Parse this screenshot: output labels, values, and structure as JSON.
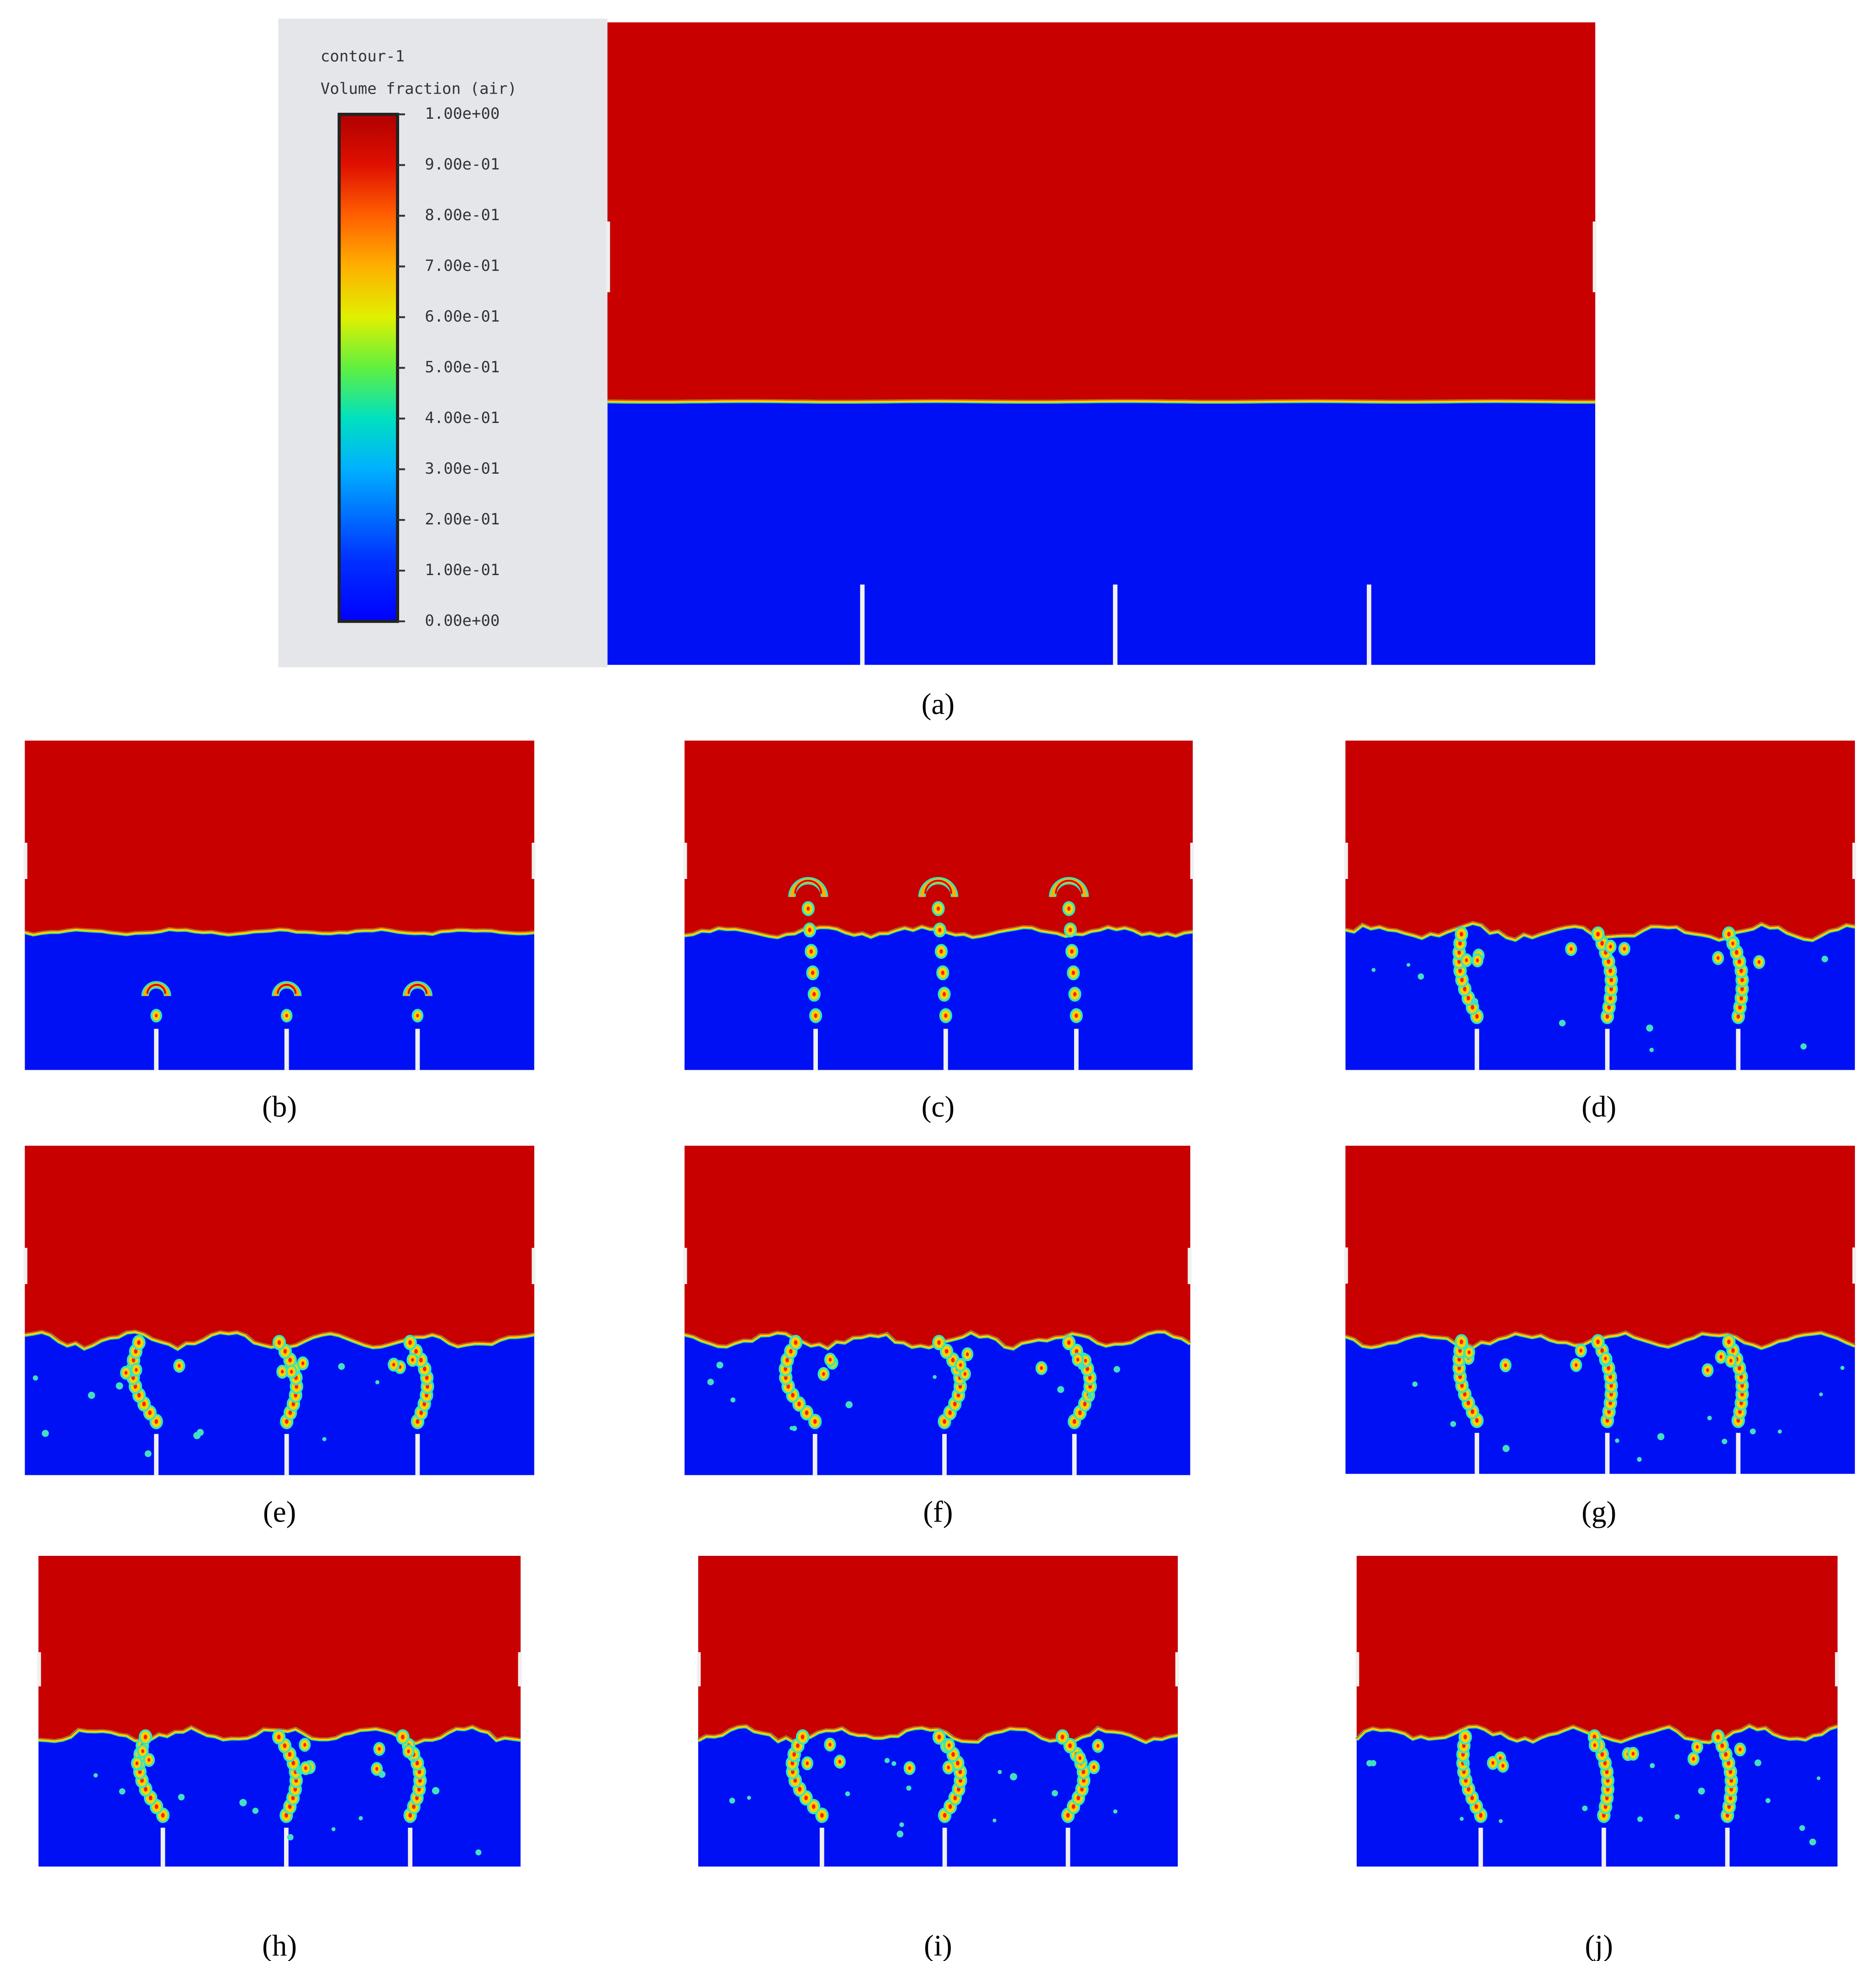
{
  "legend": {
    "title": "contour-1",
    "variable": "Volume fraction (air)",
    "ticks": [
      {
        "value": 1.0,
        "label": "1.00e+00"
      },
      {
        "value": 0.9,
        "label": "9.00e-01"
      },
      {
        "value": 0.8,
        "label": "8.00e-01"
      },
      {
        "value": 0.7,
        "label": "7.00e-01"
      },
      {
        "value": 0.6,
        "label": "6.00e-01"
      },
      {
        "value": 0.5,
        "label": "5.00e-01"
      },
      {
        "value": 0.4,
        "label": "4.00e-01"
      },
      {
        "value": 0.3,
        "label": "3.00e-01"
      },
      {
        "value": 0.2,
        "label": "2.00e-01"
      },
      {
        "value": 0.1,
        "label": "1.00e-01"
      },
      {
        "value": 0.0,
        "label": "0.00e+00"
      }
    ]
  },
  "panel_labels": [
    "(a)",
    "(b)",
    "(c)",
    "(d)",
    "(e)",
    "(f)",
    "(g)",
    "(h)",
    "(i)",
    "(j)"
  ]
}
